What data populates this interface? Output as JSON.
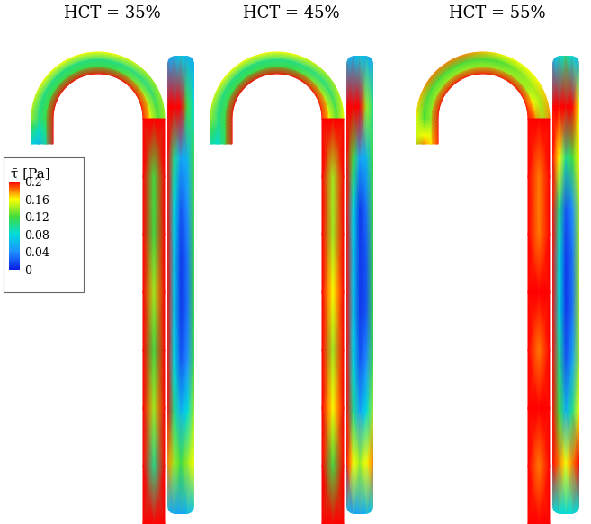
{
  "chart_data": {
    "type": "contour",
    "colorbar": {
      "label": "τ̄ [Pa]",
      "range": [
        0,
        0.2
      ],
      "ticks": [
        0.2,
        0.16,
        0.12,
        0.08,
        0.04,
        0
      ],
      "colors": [
        "#0a1ee6",
        "#1e90ff",
        "#00dcdc",
        "#40dc40",
        "#ffff00",
        "#ff0000"
      ]
    },
    "panels": [
      {
        "title": "HCT = 35%",
        "arch": [
          [
            0.2,
            0.2,
            0.2,
            0.2,
            0.2,
            0.2,
            0.2
          ],
          [
            0.1,
            0.12,
            0.12,
            0.12,
            0.12,
            0.14,
            0.16
          ],
          [
            0.06,
            0.1,
            0.1,
            0.1,
            0.1,
            0.1,
            0.12
          ],
          [
            0.08,
            0.14,
            0.16,
            0.16,
            0.16,
            0.14,
            0.14
          ]
        ],
        "channel": [
          [
            0.2,
            0.2,
            0.2
          ],
          [
            0.2,
            0.12,
            0.2
          ],
          [
            0.2,
            0.12,
            0.2
          ],
          [
            0.2,
            0.14,
            0.2
          ],
          [
            0.2,
            0.12,
            0.2
          ],
          [
            0.2,
            0.14,
            0.2
          ],
          [
            0.2,
            0.1,
            0.2
          ],
          [
            0.2,
            0.2,
            0.2
          ]
        ],
        "tube": [
          [
            0.05,
            0.06,
            0.07,
            0.06,
            0.05
          ],
          [
            0.2,
            0.2,
            0.2,
            0.12,
            0.08
          ],
          [
            0.2,
            0.1,
            0.05,
            0.06,
            0.12
          ],
          [
            0.2,
            0.08,
            0.02,
            0.04,
            0.12
          ],
          [
            0.2,
            0.07,
            0.01,
            0.03,
            0.12
          ],
          [
            0.2,
            0.07,
            0.01,
            0.03,
            0.12
          ],
          [
            0.2,
            0.08,
            0.02,
            0.04,
            0.12
          ],
          [
            0.2,
            0.1,
            0.06,
            0.08,
            0.14
          ],
          [
            0.18,
            0.14,
            0.12,
            0.14,
            0.16
          ],
          [
            0.06,
            0.05,
            0.05,
            0.06,
            0.07
          ]
        ]
      },
      {
        "title": "HCT = 45%",
        "arch": [
          [
            0.2,
            0.2,
            0.2,
            0.2,
            0.2,
            0.2,
            0.2
          ],
          [
            0.12,
            0.12,
            0.12,
            0.12,
            0.12,
            0.14,
            0.16
          ],
          [
            0.08,
            0.1,
            0.1,
            0.1,
            0.1,
            0.1,
            0.12
          ],
          [
            0.1,
            0.14,
            0.16,
            0.16,
            0.16,
            0.14,
            0.16
          ]
        ],
        "channel": [
          [
            0.2,
            0.2,
            0.2
          ],
          [
            0.2,
            0.14,
            0.2
          ],
          [
            0.2,
            0.14,
            0.2
          ],
          [
            0.2,
            0.16,
            0.2
          ],
          [
            0.2,
            0.14,
            0.2
          ],
          [
            0.2,
            0.16,
            0.2
          ],
          [
            0.2,
            0.12,
            0.2
          ],
          [
            0.2,
            0.2,
            0.2
          ]
        ],
        "tube": [
          [
            0.06,
            0.06,
            0.07,
            0.06,
            0.05
          ],
          [
            0.2,
            0.2,
            0.2,
            0.14,
            0.1
          ],
          [
            0.2,
            0.12,
            0.05,
            0.06,
            0.12
          ],
          [
            0.2,
            0.08,
            0.01,
            0.03,
            0.12
          ],
          [
            0.2,
            0.07,
            0.01,
            0.02,
            0.12
          ],
          [
            0.2,
            0.07,
            0.01,
            0.02,
            0.12
          ],
          [
            0.2,
            0.08,
            0.02,
            0.04,
            0.12
          ],
          [
            0.2,
            0.1,
            0.05,
            0.08,
            0.14
          ],
          [
            0.2,
            0.16,
            0.14,
            0.16,
            0.18
          ],
          [
            0.06,
            0.05,
            0.05,
            0.06,
            0.07
          ]
        ]
      },
      {
        "title": "HCT = 55%",
        "arch": [
          [
            0.2,
            0.2,
            0.2,
            0.2,
            0.2,
            0.2,
            0.2
          ],
          [
            0.16,
            0.14,
            0.14,
            0.14,
            0.14,
            0.14,
            0.18
          ],
          [
            0.18,
            0.12,
            0.12,
            0.12,
            0.12,
            0.14,
            0.14
          ],
          [
            0.14,
            0.16,
            0.18,
            0.18,
            0.16,
            0.16,
            0.18
          ]
        ],
        "channel": [
          [
            0.2,
            0.2,
            0.2
          ],
          [
            0.2,
            0.18,
            0.2
          ],
          [
            0.2,
            0.18,
            0.2
          ],
          [
            0.2,
            0.2,
            0.2
          ],
          [
            0.2,
            0.18,
            0.2
          ],
          [
            0.2,
            0.2,
            0.2
          ],
          [
            0.2,
            0.18,
            0.2
          ],
          [
            0.2,
            0.2,
            0.2
          ]
        ],
        "tube": [
          [
            0.06,
            0.08,
            0.1,
            0.08,
            0.06
          ],
          [
            0.2,
            0.2,
            0.2,
            0.2,
            0.16
          ],
          [
            0.2,
            0.16,
            0.1,
            0.12,
            0.16
          ],
          [
            0.2,
            0.1,
            0.02,
            0.04,
            0.14
          ],
          [
            0.2,
            0.08,
            0.01,
            0.03,
            0.14
          ],
          [
            0.2,
            0.08,
            0.01,
            0.03,
            0.14
          ],
          [
            0.2,
            0.1,
            0.02,
            0.05,
            0.14
          ],
          [
            0.2,
            0.12,
            0.06,
            0.1,
            0.16
          ],
          [
            0.2,
            0.18,
            0.16,
            0.18,
            0.2
          ],
          [
            0.08,
            0.08,
            0.08,
            0.08,
            0.08
          ]
        ]
      }
    ]
  }
}
